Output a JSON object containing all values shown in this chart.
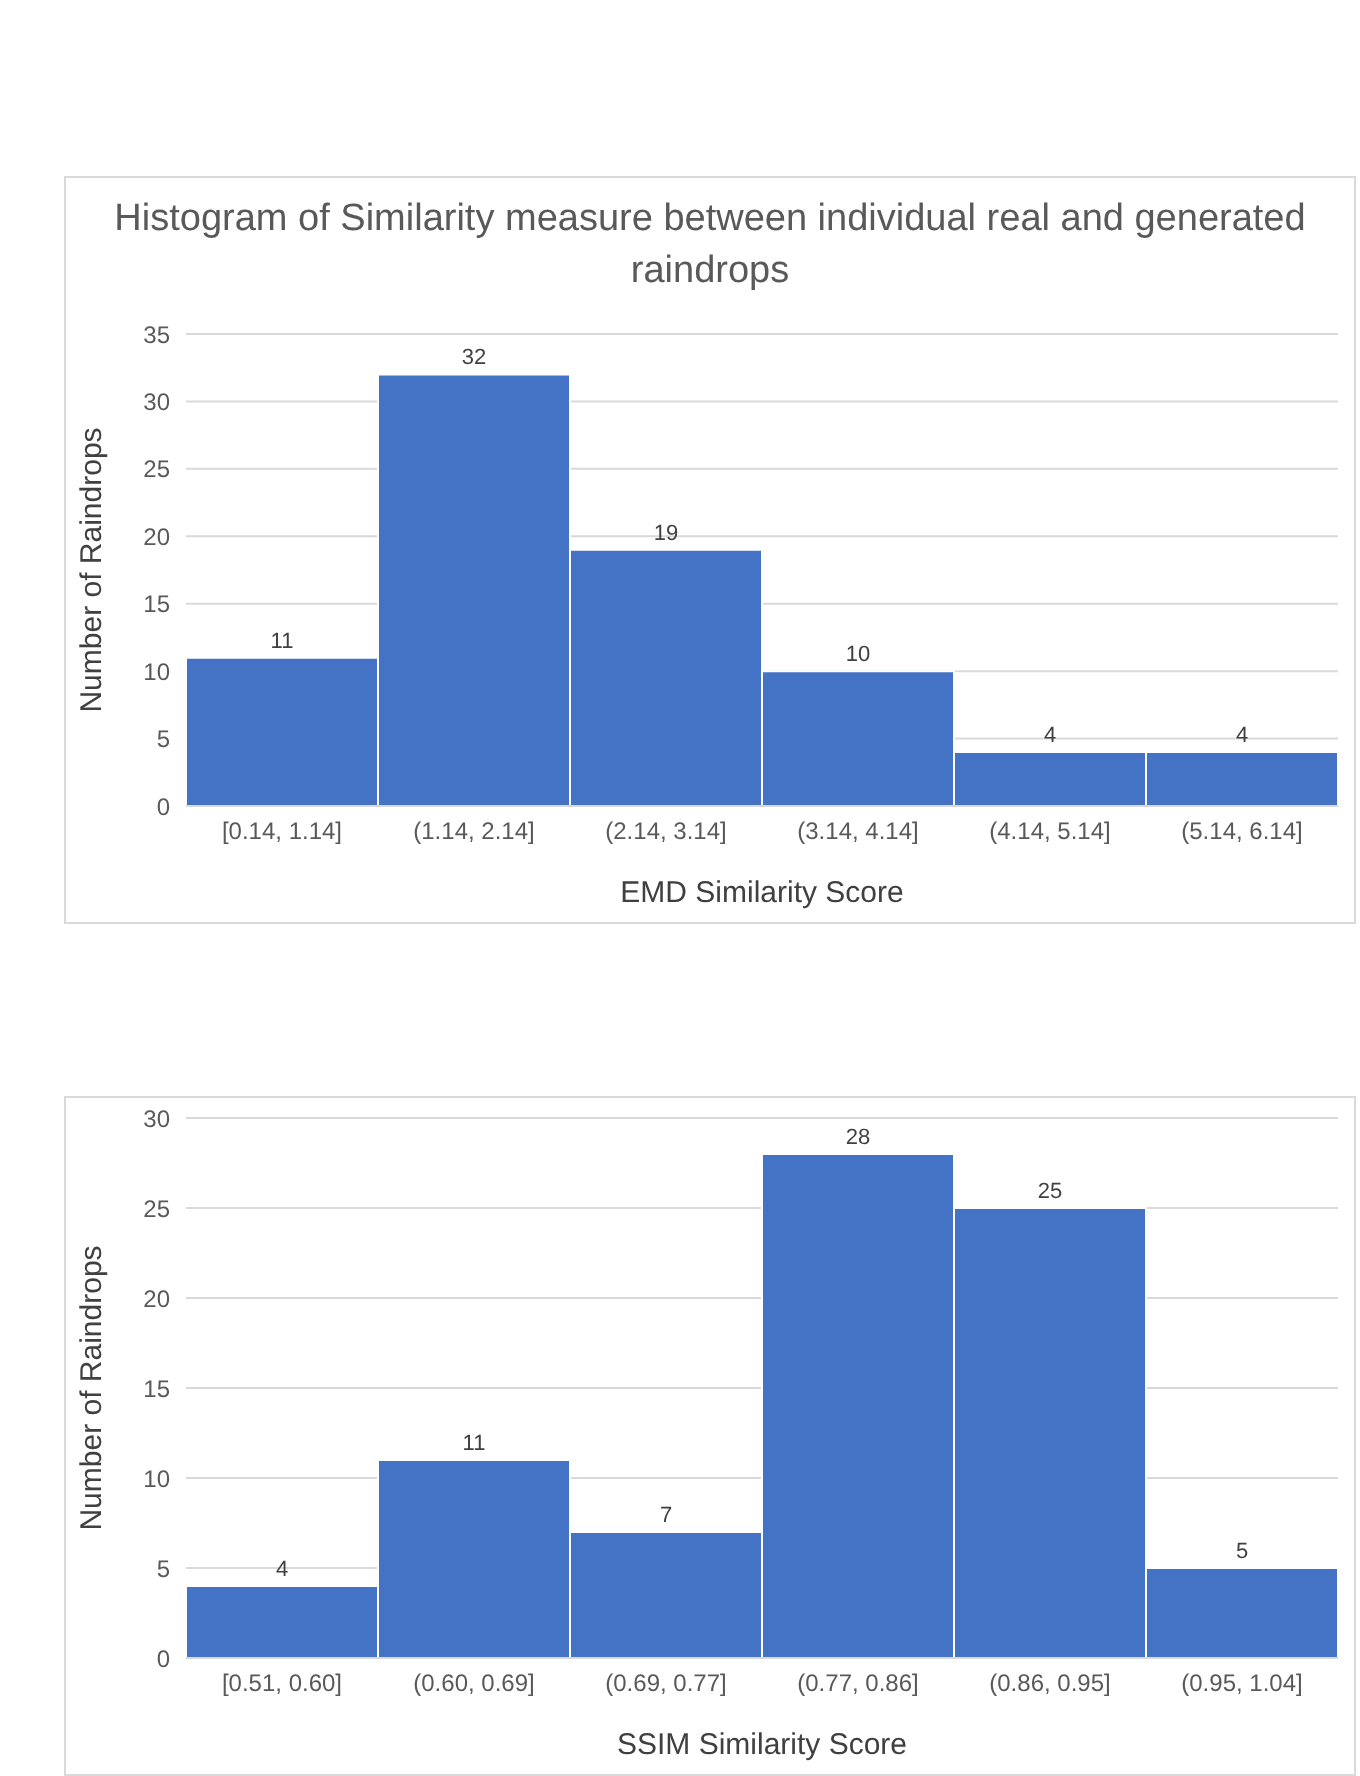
{
  "chart_data": [
    {
      "type": "bar",
      "title": "Histogram of Similarity measure between individual real and generated raindrops",
      "xlabel": "EMD Similarity Score",
      "ylabel": "Number of Raindrops",
      "categories": [
        "[0.14, 1.14]",
        "(1.14, 2.14]",
        "(2.14, 3.14]",
        "(3.14, 4.14]",
        "(4.14, 5.14]",
        "(5.14, 6.14]"
      ],
      "values": [
        11,
        32,
        19,
        10,
        4,
        4
      ],
      "color": "#4472c4",
      "ylim": [
        0,
        35
      ],
      "yticks": [
        0,
        5,
        10,
        15,
        20,
        25,
        30,
        35
      ],
      "grid": "y",
      "data_labels": true
    },
    {
      "type": "bar",
      "xlabel": "SSIM Similarity Score",
      "ylabel": "Number of Raindrops",
      "categories": [
        "[0.51, 0.60]",
        "(0.60, 0.69]",
        "(0.69, 0.77]",
        "(0.77, 0.86]",
        "(0.86, 0.95]",
        "(0.95, 1.04]"
      ],
      "values": [
        4,
        11,
        7,
        28,
        25,
        5
      ],
      "color": "#4472c4",
      "ylim": [
        0,
        30
      ],
      "yticks": [
        0,
        5,
        10,
        15,
        20,
        25,
        30
      ],
      "grid": "y",
      "data_labels": true
    }
  ]
}
